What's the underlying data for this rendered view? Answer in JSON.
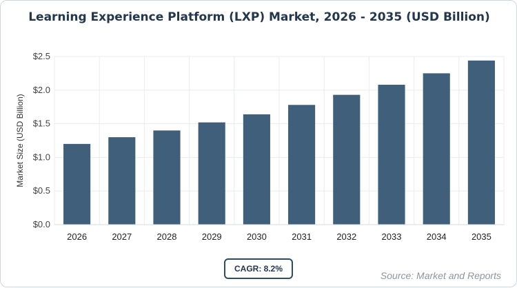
{
  "title": "Learning Experience Platform (LXP) Market, 2026 - 2035 (USD Billion)",
  "cagr_label": "CAGR: 8.2%",
  "source_label": "Source: Market and Reports",
  "colors": {
    "bar": "#3f5f7a",
    "title": "#22364d",
    "grid": "#e8ecf0",
    "axis": "#444444"
  },
  "chart_data": {
    "type": "bar",
    "title": "Learning Experience Platform (LXP) Market, 2026 - 2035 (USD Billion)",
    "xlabel": "",
    "ylabel": "Market Size (USD Billion)",
    "categories": [
      "2026",
      "2027",
      "2028",
      "2029",
      "2030",
      "2031",
      "2032",
      "2033",
      "2034",
      "2035"
    ],
    "values": [
      1.2,
      1.3,
      1.4,
      1.52,
      1.64,
      1.78,
      1.93,
      2.08,
      2.25,
      2.44
    ],
    "ylim": [
      0,
      2.5
    ],
    "yticks": [
      0,
      0.5,
      1.0,
      1.5,
      2.0,
      2.5
    ],
    "ytick_labels": [
      "$0.0",
      "$0.5",
      "$1.0",
      "$1.5",
      "$2.0",
      "$2.5"
    ],
    "grid": true,
    "legend": "none"
  }
}
